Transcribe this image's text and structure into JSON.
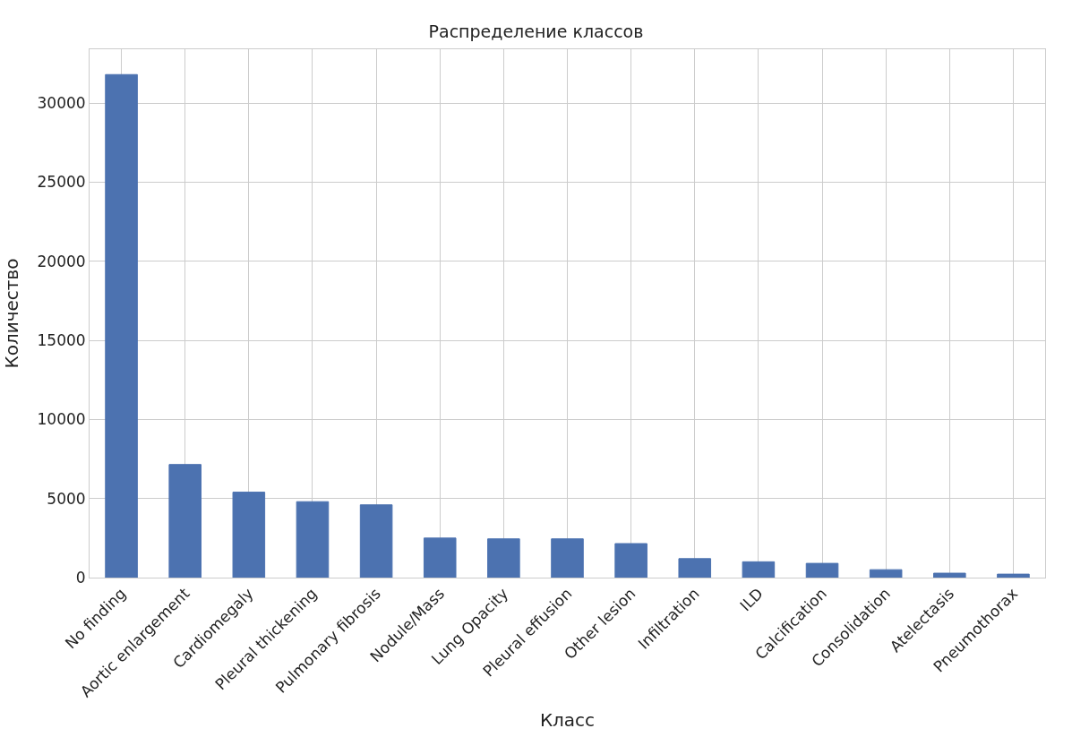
{
  "chart_data": {
    "type": "bar",
    "title": "Распределение классов",
    "xlabel": "Класс",
    "ylabel": "Количество",
    "categories": [
      "No finding",
      "Aortic enlargement",
      "Cardiomegaly",
      "Pleural thickening",
      "Pulmonary fibrosis",
      "Nodule/Mass",
      "Lung Opacity",
      "Pleural effusion",
      "Other lesion",
      "Infiltration",
      "ILD",
      "Calcification",
      "Consolidation",
      "Atelectasis",
      "Pneumothorax"
    ],
    "values": [
      31800,
      7150,
      5400,
      4800,
      4600,
      2500,
      2450,
      2450,
      2150,
      1200,
      1000,
      900,
      500,
      280,
      220
    ],
    "color": "#4c72b0",
    "ylim": [
      0,
      33400
    ],
    "yticks": [
      0,
      5000,
      10000,
      15000,
      20000,
      25000,
      30000
    ],
    "grid": true
  }
}
